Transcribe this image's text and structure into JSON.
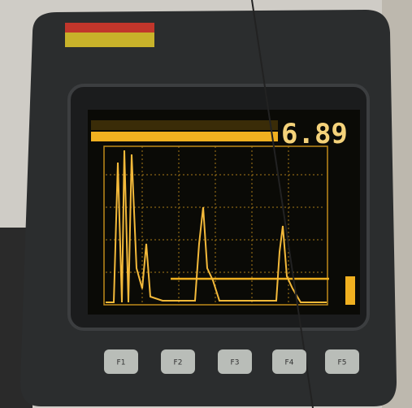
{
  "screen": {
    "reading": "6.89"
  },
  "buttons": [
    "F1",
    "F2",
    "F3",
    "F4",
    "F5"
  ]
}
